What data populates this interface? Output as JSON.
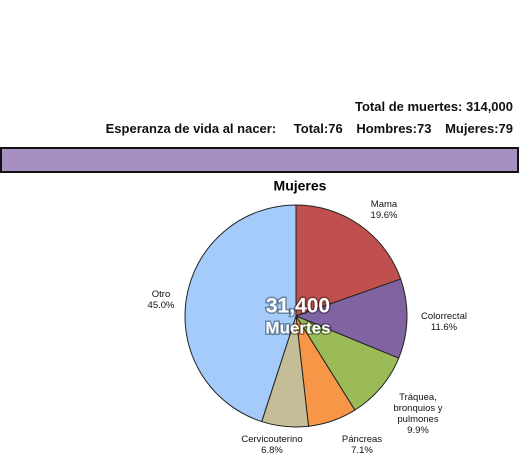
{
  "header": {
    "total_deaths": "Total de muertes: 314,000",
    "life_expectancy": {
      "label": "Esperanza de vida al nacer:",
      "total": "Total:76",
      "men": "Hombres:73",
      "women": "Mujeres:79"
    }
  },
  "chart_data": {
    "type": "pie",
    "title": "Mujeres",
    "center_text": [
      "31,400",
      "Muertes"
    ],
    "categories": [
      "Mama",
      "Colorrectal",
      "Tráquea,\nbronquios y\npulmones",
      "Páncreas",
      "Cervicouterino",
      "Otro"
    ],
    "values": [
      19.6,
      11.6,
      9.9,
      7.1,
      6.8,
      45.0
    ],
    "value_labels": [
      "19.6%",
      "11.6%",
      "9.9%",
      "7.1%",
      "6.8%",
      "45.0%"
    ],
    "colors": [
      "#c0504d",
      "#8064a2",
      "#9bbb59",
      "#f79646",
      "#c4bd97",
      "#a4cbfa"
    ]
  }
}
